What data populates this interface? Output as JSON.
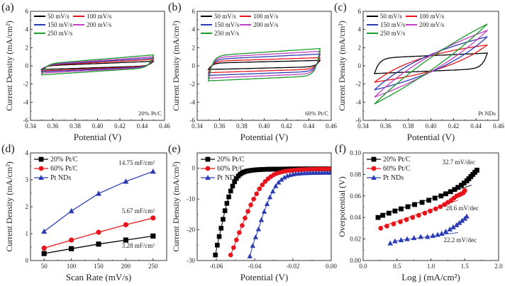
{
  "chart_data": [
    {
      "panel": "(a)",
      "type": "line",
      "subtype": "cyclic-voltammogram",
      "xlabel": "Potential (V)",
      "ylabel": "Current Density (mA/cm²)",
      "xlim": [
        0.34,
        0.46
      ],
      "ylim": [
        -6,
        6
      ],
      "xticks": [
        0.34,
        0.36,
        0.38,
        0.4,
        0.42,
        0.44,
        0.46
      ],
      "xtick_labels": [
        "0.34",
        "0.36",
        "0.38",
        "0.40",
        "0.42",
        "0.44",
        "0.46"
      ],
      "yticks": [
        -6,
        -4,
        -2,
        0,
        2,
        4,
        6
      ],
      "ytick_labels": [
        "-6",
        "-4",
        "-2",
        "0",
        "2",
        "4",
        "6"
      ],
      "annotation": "20% Pt/C",
      "legend_position": "top-left",
      "potential_window": [
        0.35,
        0.45
      ],
      "series": [
        {
          "name": "50 mV/s",
          "color": "#000000",
          "upper": [
            0.0,
            0.5
          ],
          "lower": [
            -0.4,
            0.0
          ]
        },
        {
          "name": "100 mV/s",
          "color": "#e8141b",
          "upper": [
            0.05,
            0.7
          ],
          "lower": [
            -0.55,
            -0.05
          ]
        },
        {
          "name": "150 mV/s",
          "color": "#2b3bb3",
          "upper": [
            0.1,
            0.85
          ],
          "lower": [
            -0.65,
            -0.1
          ]
        },
        {
          "name": "200 mV/s",
          "color": "#c040c0",
          "upper": [
            0.15,
            1.0
          ],
          "lower": [
            -0.8,
            -0.15
          ]
        },
        {
          "name": "250 mV/s",
          "color": "#1a9a2a",
          "upper": [
            0.2,
            1.2
          ],
          "lower": [
            -1.0,
            -0.2
          ]
        }
      ]
    },
    {
      "panel": "(b)",
      "type": "line",
      "subtype": "cyclic-voltammogram",
      "xlabel": "Potential (V)",
      "ylabel": "Current Density (mA/cm²)",
      "xlim": [
        0.34,
        0.46
      ],
      "ylim": [
        -6,
        6
      ],
      "xticks": [
        0.34,
        0.36,
        0.38,
        0.4,
        0.42,
        0.44,
        0.46
      ],
      "xtick_labels": [
        "0.34",
        "0.36",
        "0.38",
        "0.40",
        "0.42",
        "0.44",
        "0.46"
      ],
      "yticks": [
        -6,
        -4,
        -2,
        0,
        2,
        4,
        6
      ],
      "ytick_labels": [
        "-6",
        "-4",
        "-2",
        "0",
        "2",
        "4",
        "6"
      ],
      "annotation": "60% Pt/C",
      "legend_position": "top-left",
      "potential_window": [
        0.35,
        0.45
      ],
      "series": [
        {
          "name": "50 mV/s",
          "color": "#000000",
          "upper": [
            0.3,
            0.6
          ],
          "lower": [
            -0.4,
            -0.1
          ]
        },
        {
          "name": "100 mV/s",
          "color": "#e8141b",
          "upper": [
            0.5,
            0.9
          ],
          "lower": [
            -0.75,
            -0.35
          ]
        },
        {
          "name": "150 mV/s",
          "color": "#2b3bb3",
          "upper": [
            0.7,
            1.3
          ],
          "lower": [
            -1.05,
            -0.6
          ]
        },
        {
          "name": "200 mV/s",
          "color": "#c040c0",
          "upper": [
            0.9,
            1.6
          ],
          "lower": [
            -1.35,
            -0.85
          ]
        },
        {
          "name": "250 mV/s",
          "color": "#1a9a2a",
          "upper": [
            1.1,
            1.9
          ],
          "lower": [
            -1.65,
            -1.1
          ]
        }
      ]
    },
    {
      "panel": "(c)",
      "type": "line",
      "subtype": "cyclic-voltammogram",
      "xlabel": "Potential (V)",
      "ylabel": "Current Density (mA/cm²)",
      "xlim": [
        0.34,
        0.46
      ],
      "ylim": [
        -6,
        6
      ],
      "xticks": [
        0.34,
        0.36,
        0.38,
        0.4,
        0.42,
        0.44,
        0.46
      ],
      "xtick_labels": [
        "0.34",
        "0.36",
        "0.38",
        "0.40",
        "0.42",
        "0.44",
        "0.46"
      ],
      "yticks": [
        -6,
        -4,
        -2,
        0,
        2,
        4,
        6
      ],
      "ytick_labels": [
        "-6",
        "-4",
        "-2",
        "0",
        "2",
        "4",
        "6"
      ],
      "annotation": "Pt NDs",
      "legend_position": "top-left",
      "potential_window": [
        0.35,
        0.45
      ],
      "series": [
        {
          "name": "50 mV/s",
          "color": "#000000",
          "upper": [
            0.85,
            1.4
          ],
          "lower": [
            -0.85,
            -0.3
          ]
        },
        {
          "name": "100 mV/s",
          "color": "#e8141b",
          "upper": [
            1.2,
            2.3
          ],
          "lower": [
            -1.8,
            -0.6
          ]
        },
        {
          "name": "150 mV/s",
          "color": "#2b3bb3",
          "upper": [
            1.4,
            3.2
          ],
          "lower": [
            -2.65,
            -0.8
          ]
        },
        {
          "name": "200 mV/s",
          "color": "#c040c0",
          "upper": [
            1.5,
            3.9
          ],
          "lower": [
            -3.45,
            -0.95
          ]
        },
        {
          "name": "250 mV/s",
          "color": "#1a9a2a",
          "upper": [
            1.6,
            4.6
          ],
          "lower": [
            -4.2,
            -1.1
          ]
        }
      ]
    },
    {
      "panel": "(d)",
      "type": "line",
      "xlabel": "Scan Rate (mV/s)",
      "ylabel": "Current Density (mA/cm²)",
      "xlim": [
        25,
        275
      ],
      "ylim": [
        0,
        4
      ],
      "xticks": [
        50,
        100,
        150,
        200,
        250
      ],
      "xtick_labels": [
        "50",
        "100",
        "150",
        "200",
        "250"
      ],
      "yticks": [
        0,
        1,
        2,
        3,
        4
      ],
      "ytick_labels": [
        "0",
        "1",
        "2",
        "3",
        "4"
      ],
      "legend_position": "top-left",
      "x": [
        50,
        100,
        150,
        200,
        250
      ],
      "series": [
        {
          "name": "20% Pt/C",
          "color": "#000000",
          "marker": "square",
          "values": [
            0.26,
            0.44,
            0.61,
            0.76,
            0.91
          ],
          "label": "3.28 mF/cm²"
        },
        {
          "name": "60% Pt/C",
          "color": "#e8141b",
          "marker": "circle",
          "values": [
            0.46,
            0.76,
            1.05,
            1.33,
            1.58
          ],
          "label": "5.67 mF/cm²"
        },
        {
          "name": "Pt NDs",
          "color": "#2b3bb3",
          "marker": "triangle",
          "values": [
            1.08,
            1.84,
            2.49,
            2.94,
            3.31
          ],
          "label": "14.75 mF/cm²"
        }
      ]
    },
    {
      "panel": "(e)",
      "type": "line",
      "subtype": "polarization-curve",
      "xlabel": "Potential (V)",
      "ylabel": "Current Density (mA/cm²)",
      "xlim": [
        -0.07,
        0.0
      ],
      "ylim": [
        -30,
        5
      ],
      "xticks": [
        -0.06,
        -0.04,
        -0.02,
        0.0
      ],
      "xtick_labels": [
        "-0.06",
        "-0.04",
        "-0.02",
        "0.00"
      ],
      "yticks": [
        -30,
        -20,
        -10,
        0
      ],
      "ytick_labels": [
        "-30",
        "-20",
        "-10",
        "0"
      ],
      "legend_position": "top-left",
      "series": [
        {
          "name": "20% Pt/C",
          "color": "#000000",
          "marker": "square",
          "x": [
            -0.0605,
            -0.0595,
            -0.0585,
            -0.0575,
            -0.0565,
            -0.0555,
            -0.0545,
            -0.0535,
            -0.0525,
            -0.0515,
            -0.0505,
            -0.0495,
            -0.0485,
            -0.0475,
            -0.0465,
            -0.0455,
            -0.0445,
            -0.0435,
            -0.0425,
            -0.0415,
            -0.0405,
            -0.0395,
            -0.0385,
            -0.0375,
            -0.0365,
            -0.0355,
            -0.0345,
            -0.0335,
            -0.0325,
            -0.0315,
            -0.0305,
            -0.0295,
            -0.0285,
            -0.0275,
            -0.0265,
            -0.0255,
            -0.0245,
            -0.0235,
            -0.0225,
            -0.0215,
            -0.0205,
            -0.0195,
            -0.0185,
            -0.0175,
            -0.0165,
            -0.0155,
            -0.0145,
            -0.0135,
            -0.0125,
            -0.0115,
            -0.0105,
            -0.0095,
            -0.0085,
            -0.0075,
            -0.0065,
            -0.0055,
            -0.0045,
            -0.0035,
            -0.0025,
            -0.0015,
            -0.0005
          ],
          "y": [
            -28.2,
            -25.0,
            -22.2,
            -19.5,
            -16.6,
            -13.8,
            -11.4,
            -9.3,
            -7.4,
            -5.8,
            -4.4,
            -3.3,
            -2.5,
            -1.9,
            -1.5,
            -1.2,
            -1.0,
            -0.85,
            -0.75,
            -0.65,
            -0.58,
            -0.52,
            -0.47,
            -0.43,
            -0.4,
            -0.37,
            -0.35,
            -0.33,
            -0.31,
            -0.3,
            -0.29,
            -0.28,
            -0.27,
            -0.26,
            -0.25,
            -0.25,
            -0.24,
            -0.24,
            -0.23,
            -0.23,
            -0.22,
            -0.22,
            -0.22,
            -0.21,
            -0.21,
            -0.21,
            -0.2,
            -0.2,
            -0.2,
            -0.2,
            -0.2,
            -0.19,
            -0.19,
            -0.19,
            -0.19,
            -0.19,
            -0.18,
            -0.18,
            -0.18,
            -0.18,
            -0.18
          ]
        },
        {
          "name": "60% Pt/C",
          "color": "#e8141b",
          "marker": "circle",
          "x": [
            -0.0525,
            -0.051,
            -0.0495,
            -0.048,
            -0.0465,
            -0.045,
            -0.0435,
            -0.042,
            -0.0405,
            -0.039,
            -0.0375,
            -0.036,
            -0.0345,
            -0.033,
            -0.0315,
            -0.03,
            -0.0285,
            -0.027,
            -0.0255,
            -0.024,
            -0.0225,
            -0.021,
            -0.0195,
            -0.018,
            -0.0165,
            -0.015,
            -0.0135,
            -0.012,
            -0.0105,
            -0.009,
            -0.0075,
            -0.006,
            -0.0045,
            -0.003,
            -0.0015,
            0.0
          ],
          "y": [
            -28.2,
            -25.8,
            -23.3,
            -20.9,
            -18.6,
            -16.2,
            -14.0,
            -11.9,
            -10.0,
            -8.3,
            -6.7,
            -5.4,
            -4.3,
            -3.4,
            -2.7,
            -2.1,
            -1.7,
            -1.4,
            -1.15,
            -0.95,
            -0.8,
            -0.7,
            -0.6,
            -0.52,
            -0.46,
            -0.41,
            -0.37,
            -0.33,
            -0.3,
            -0.28,
            -0.26,
            -0.24,
            -0.22,
            -0.21,
            -0.2,
            -0.19
          ]
        },
        {
          "name": "Pt NDs",
          "color": "#2b3bb3",
          "marker": "triangle",
          "x": [
            -0.0425,
            -0.041,
            -0.0395,
            -0.038,
            -0.0365,
            -0.035,
            -0.0335,
            -0.032,
            -0.0305,
            -0.029,
            -0.0275,
            -0.026,
            -0.0245,
            -0.023,
            -0.0215,
            -0.02,
            -0.0185,
            -0.017,
            -0.0155,
            -0.014,
            -0.0125,
            -0.011,
            -0.0095,
            -0.008,
            -0.0065,
            -0.005,
            -0.0035,
            -0.002,
            -0.0005
          ],
          "y": [
            -28.6,
            -25.2,
            -22.4,
            -19.8,
            -16.8,
            -14.1,
            -11.6,
            -9.4,
            -7.5,
            -5.8,
            -4.6,
            -3.7,
            -3.0,
            -2.5,
            -2.2,
            -1.95,
            -1.8,
            -1.7,
            -1.62,
            -1.56,
            -1.52,
            -1.49,
            -1.47,
            -1.45,
            -1.44,
            -1.43,
            -1.42,
            -1.41,
            -1.4
          ]
        }
      ]
    },
    {
      "panel": "(f)",
      "type": "scatter",
      "subtype": "tafel-plot",
      "xlabel": "Log j (mA/cm²)",
      "ylabel": "Overpotential (V)",
      "xlim": [
        0.0,
        2.0
      ],
      "ylim": [
        0.0,
        0.1
      ],
      "xticks": [
        0.0,
        0.5,
        1.0,
        1.5,
        2.0
      ],
      "xtick_labels": [
        "0.0",
        "0.5",
        "1.0",
        "1.5",
        "2.0"
      ],
      "yticks": [
        0.0,
        0.02,
        0.04,
        0.06,
        0.08,
        0.1
      ],
      "ytick_labels": [
        "0.00",
        "0.02",
        "0.04",
        "0.06",
        "0.08",
        "0.10"
      ],
      "legend_position": "top-left",
      "series": [
        {
          "name": "20% Pt/C",
          "color": "#000000",
          "marker": "square",
          "slope_label": "32.7 mV/dec",
          "fit": [
            [
              0.3,
              0.043
            ],
            [
              1.6,
              0.07
            ]
          ],
          "x": [
            0.22,
            0.29,
            0.38,
            0.47,
            0.56,
            0.66,
            0.76,
            0.87,
            0.97,
            1.06,
            1.15,
            1.22,
            1.29,
            1.35,
            1.4,
            1.45,
            1.49,
            1.53,
            1.56,
            1.59,
            1.62,
            1.65,
            1.68
          ],
          "y": [
            0.04,
            0.042,
            0.044,
            0.046,
            0.048,
            0.05,
            0.052,
            0.054,
            0.056,
            0.058,
            0.06,
            0.062,
            0.064,
            0.066,
            0.068,
            0.07,
            0.072,
            0.074,
            0.076,
            0.078,
            0.08,
            0.082,
            0.084
          ]
        },
        {
          "name": "60% Pt/C",
          "color": "#e8141b",
          "marker": "circle",
          "slope_label": "28.6 mV/dec",
          "fit": [
            [
              0.3,
              0.032
            ],
            [
              1.4,
              0.056
            ]
          ],
          "x": [
            0.26,
            0.35,
            0.45,
            0.55,
            0.64,
            0.73,
            0.82,
            0.91,
            0.99,
            1.07,
            1.14,
            1.2,
            1.25,
            1.3,
            1.34,
            1.38,
            1.42,
            1.45,
            1.48,
            1.5
          ],
          "y": [
            0.03,
            0.032,
            0.034,
            0.036,
            0.038,
            0.04,
            0.042,
            0.044,
            0.046,
            0.048,
            0.05,
            0.052,
            0.054,
            0.056,
            0.058,
            0.06,
            0.061,
            0.062,
            0.063,
            0.065
          ]
        },
        {
          "name": "Pt NDs",
          "color": "#2b3bb3",
          "marker": "triangle",
          "slope_label": "22.2 mV/dec",
          "fit": [
            [
              0.45,
              0.018
            ],
            [
              1.4,
              0.026
            ]
          ],
          "x": [
            0.4,
            0.47,
            0.56,
            0.65,
            0.75,
            0.85,
            0.95,
            1.03,
            1.1,
            1.16,
            1.22,
            1.28,
            1.33,
            1.38,
            1.42,
            1.46,
            1.5,
            1.53
          ],
          "y": [
            0.016,
            0.018,
            0.019,
            0.02,
            0.021,
            0.022,
            0.022,
            0.023,
            0.024,
            0.025,
            0.027,
            0.029,
            0.031,
            0.033,
            0.035,
            0.037,
            0.039,
            0.041
          ]
        }
      ]
    }
  ]
}
